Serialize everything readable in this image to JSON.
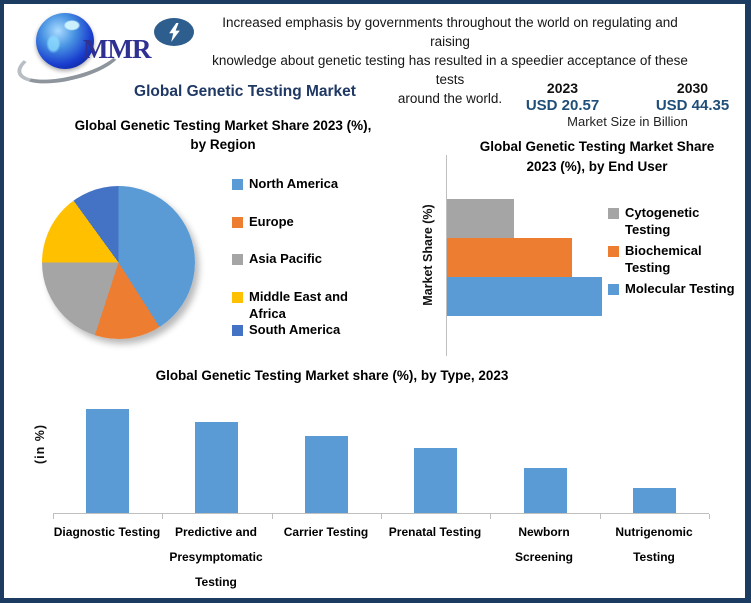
{
  "header": {
    "logo_text": "MMR",
    "blurb": "Increased emphasis by governments throughout the world on regulating and raising\nknowledge about genetic testing has resulted in a speedier acceptance of these tests\naround the world."
  },
  "page_title": "Global Genetic Testing Market",
  "market_size": {
    "year1": {
      "year": "2023",
      "value": "USD 20.57"
    },
    "year2": {
      "year": "2030",
      "value": "USD 44.35"
    },
    "caption": "Market Size in Billion"
  },
  "chart_data": [
    {
      "id": "region",
      "type": "pie",
      "title": "Global Genetic Testing Market Share 2023 (%), by Region",
      "labels": [
        "North America",
        "Europe",
        "Asia Pacific",
        "Middle East and Africa",
        "South America"
      ],
      "values": [
        41,
        14,
        20,
        15,
        10
      ],
      "colors": [
        "#5B9BD5",
        "#ED7D31",
        "#A5A5A5",
        "#FFC000",
        "#4472C4"
      ],
      "legend_position": "right",
      "start_angle_deg": 0,
      "direction": "clockwise"
    },
    {
      "id": "end_user",
      "type": "bar",
      "orientation": "horizontal",
      "title": "Global Genetic Testing Market Share 2023 (%), by End User",
      "ylabel": "Market Share (%)",
      "categories": [
        "Cytogenetic Testing",
        "Biochemical Testing",
        "Molecular Testing"
      ],
      "values": [
        20,
        37,
        46
      ],
      "colors": [
        "#A5A5A5",
        "#ED7D31",
        "#5B9BD5"
      ],
      "legend_position": "right",
      "grid": false
    },
    {
      "id": "by_type",
      "type": "bar",
      "orientation": "vertical",
      "title": "Global Genetic Testing Market share (%), by Type, 2023",
      "ylabel": "(in %)",
      "categories": [
        "Diagnostic Testing",
        "Predictive and Presymptomatic Testing",
        "Carrier Testing",
        "Prenatal Testing",
        "Newborn Screening",
        "Nutrigenomic Testing"
      ],
      "values": [
        31,
        27,
        23,
        19.5,
        13.5,
        7.5
      ],
      "bar_color": "#5B9BD5",
      "grid": false,
      "legend_position": "none"
    }
  ],
  "theme": {
    "border_navy": "#1B3B60",
    "title_navy": "#1F3864",
    "value_navy": "#1F4E79",
    "bolt_blue": "#2D5E8D",
    "logo_blue": "#2F3192",
    "axis_gray": "#BFBFBF",
    "series_blue": "#5B9BD5",
    "series_orange": "#ED7D31",
    "series_gray": "#A5A5A5",
    "series_yellow": "#FFC000",
    "series_dark_blue": "#4472C4"
  }
}
